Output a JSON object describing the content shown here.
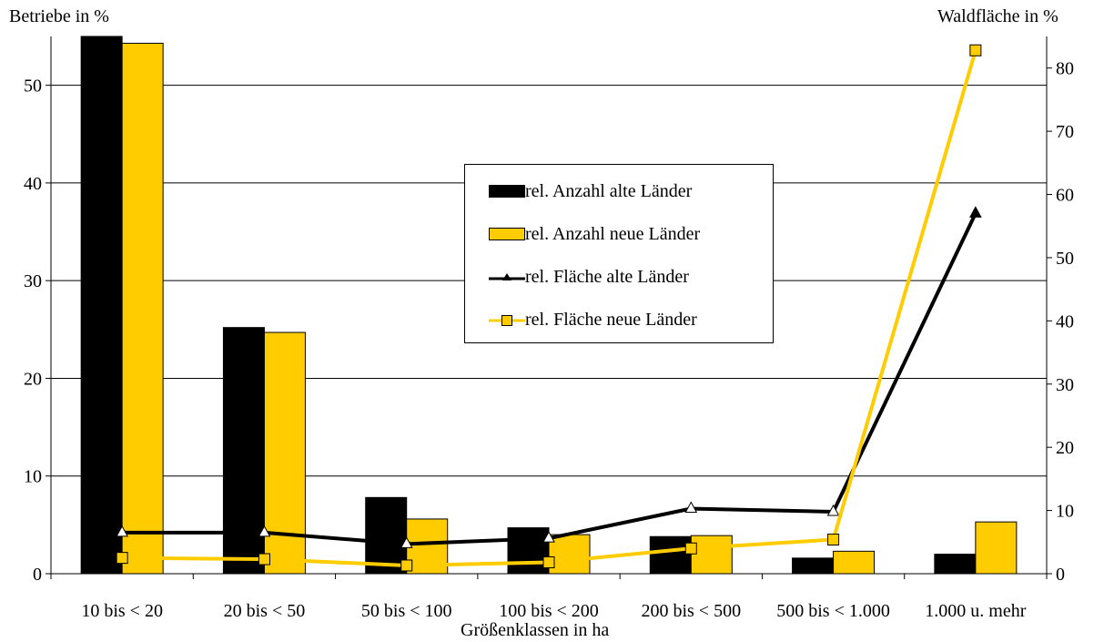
{
  "chart_data": {
    "type": "bar",
    "xlabel": "Größenklassen in ha",
    "ylabel_left": "Betriebe in %",
    "ylabel_right": "Waldfläche in %",
    "categories": [
      "10 bis < 20",
      "20 bis < 50",
      "50 bis < 100",
      "100 bis < 200",
      "200 bis < 500",
      "500 bis < 1.000",
      "1.000 u. mehr"
    ],
    "ylim_left": [
      0,
      55
    ],
    "yticks_left": [
      0,
      10,
      20,
      30,
      40,
      50
    ],
    "ylim_right": [
      0,
      85
    ],
    "yticks_right": [
      0,
      10,
      20,
      30,
      40,
      50,
      60,
      70,
      80
    ],
    "grid": "horizontal",
    "legend_position": "center-right",
    "series": [
      {
        "name": "rel. Anzahl alte Länder",
        "kind": "bar",
        "axis": "left",
        "color": "#000000",
        "values": [
          55,
          25.2,
          7.8,
          4.7,
          3.8,
          1.6,
          2.0
        ]
      },
      {
        "name": "rel. Anzahl neue Länder",
        "kind": "bar",
        "axis": "left",
        "color": "#FFCC00",
        "values": [
          54.3,
          24.7,
          5.6,
          4.0,
          3.9,
          2.3,
          5.3
        ]
      },
      {
        "name": "rel. Fläche alte Länder",
        "kind": "line",
        "axis": "right",
        "color": "#000000",
        "marker": "triangle",
        "values": [
          6.5,
          6.5,
          4.7,
          5.6,
          10.3,
          9.8,
          57.0
        ]
      },
      {
        "name": "rel. Fläche neue Länder",
        "kind": "line",
        "axis": "right",
        "color": "#FFCC00",
        "marker": "square",
        "values": [
          2.5,
          2.3,
          1.3,
          1.8,
          4.0,
          5.4,
          82.8
        ]
      }
    ]
  }
}
